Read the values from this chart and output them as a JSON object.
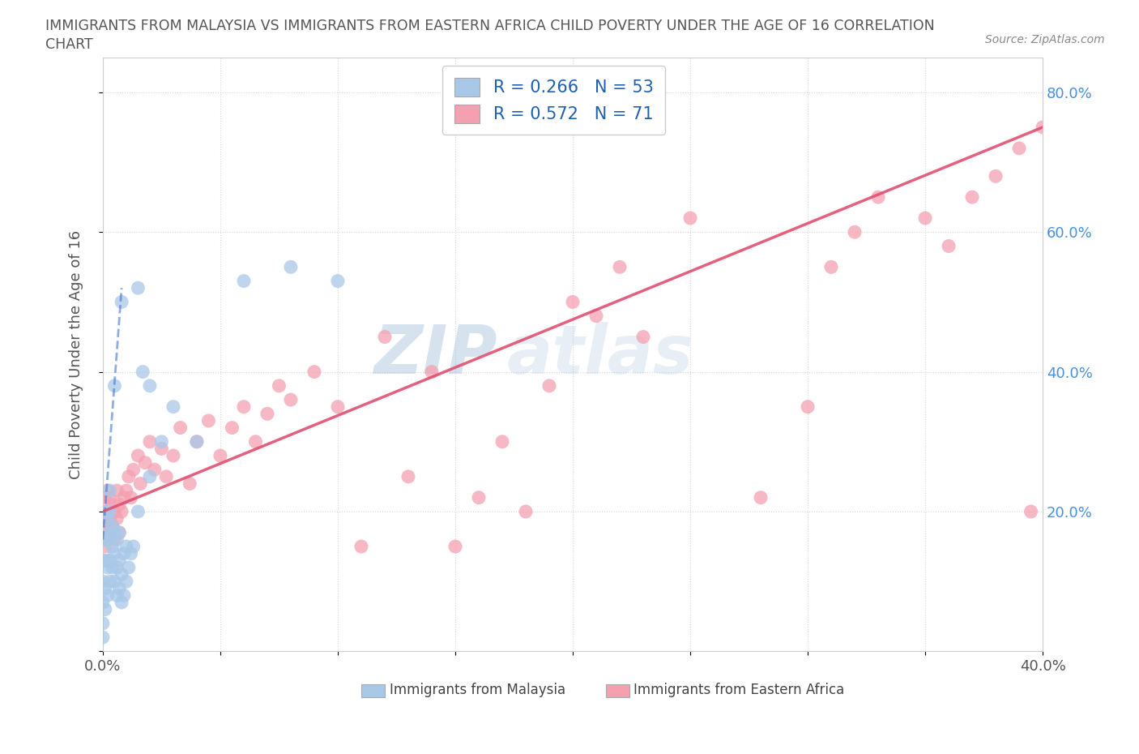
{
  "title_line1": "IMMIGRANTS FROM MALAYSIA VS IMMIGRANTS FROM EASTERN AFRICA CHILD POVERTY UNDER THE AGE OF 16 CORRELATION",
  "title_line2": "CHART",
  "source": "Source: ZipAtlas.com",
  "ylabel": "Child Poverty Under the Age of 16",
  "xlim": [
    0.0,
    0.4
  ],
  "ylim": [
    0.0,
    0.85
  ],
  "malaysia_color": "#a8c8e8",
  "eastern_africa_color": "#f4a0b0",
  "malaysia_line_color": "#4477cc",
  "eastern_africa_line_color": "#e05070",
  "malaysia_R": 0.266,
  "malaysia_N": 53,
  "eastern_africa_R": 0.572,
  "eastern_africa_N": 71,
  "legend_label_malaysia": "Immigrants from Malaysia",
  "legend_label_eastern_africa": "Immigrants from Eastern Africa",
  "watermark_zip": "ZIP",
  "watermark_atlas": "atlas",
  "grid_color": "#cccccc",
  "background_color": "#ffffff",
  "ytick_color": "#4a90d9",
  "malaysia_x": [
    0.0,
    0.0,
    0.0,
    0.0,
    0.0,
    0.001,
    0.001,
    0.001,
    0.001,
    0.001,
    0.002,
    0.002,
    0.002,
    0.002,
    0.003,
    0.003,
    0.003,
    0.003,
    0.003,
    0.004,
    0.004,
    0.004,
    0.005,
    0.005,
    0.005,
    0.006,
    0.006,
    0.006,
    0.007,
    0.007,
    0.007,
    0.008,
    0.008,
    0.009,
    0.009,
    0.01,
    0.01,
    0.011,
    0.012,
    0.013,
    0.015,
    0.017,
    0.02,
    0.025,
    0.03,
    0.04,
    0.06,
    0.08,
    0.1,
    0.02,
    0.015,
    0.008,
    0.005
  ],
  "malaysia_y": [
    0.02,
    0.04,
    0.07,
    0.1,
    0.13,
    0.06,
    0.09,
    0.13,
    0.16,
    0.2,
    0.08,
    0.12,
    0.16,
    0.19,
    0.1,
    0.13,
    0.17,
    0.2,
    0.23,
    0.12,
    0.15,
    0.18,
    0.1,
    0.14,
    0.17,
    0.08,
    0.12,
    0.16,
    0.09,
    0.13,
    0.17,
    0.07,
    0.11,
    0.08,
    0.14,
    0.1,
    0.15,
    0.12,
    0.14,
    0.15,
    0.52,
    0.4,
    0.38,
    0.3,
    0.35,
    0.3,
    0.53,
    0.55,
    0.53,
    0.25,
    0.2,
    0.5,
    0.38
  ],
  "eastern_africa_x": [
    0.0,
    0.0,
    0.001,
    0.001,
    0.001,
    0.002,
    0.002,
    0.002,
    0.003,
    0.003,
    0.004,
    0.004,
    0.005,
    0.005,
    0.006,
    0.006,
    0.007,
    0.007,
    0.008,
    0.009,
    0.01,
    0.011,
    0.012,
    0.013,
    0.015,
    0.016,
    0.018,
    0.02,
    0.022,
    0.025,
    0.027,
    0.03,
    0.033,
    0.037,
    0.04,
    0.045,
    0.05,
    0.055,
    0.06,
    0.065,
    0.07,
    0.075,
    0.08,
    0.09,
    0.1,
    0.11,
    0.12,
    0.13,
    0.14,
    0.15,
    0.16,
    0.17,
    0.18,
    0.19,
    0.2,
    0.21,
    0.22,
    0.23,
    0.25,
    0.28,
    0.3,
    0.31,
    0.32,
    0.33,
    0.35,
    0.36,
    0.37,
    0.38,
    0.39,
    0.395,
    0.4
  ],
  "eastern_africa_y": [
    0.2,
    0.16,
    0.18,
    0.22,
    0.15,
    0.2,
    0.23,
    0.17,
    0.19,
    0.22,
    0.18,
    0.21,
    0.16,
    0.2,
    0.19,
    0.23,
    0.21,
    0.17,
    0.2,
    0.22,
    0.23,
    0.25,
    0.22,
    0.26,
    0.28,
    0.24,
    0.27,
    0.3,
    0.26,
    0.29,
    0.25,
    0.28,
    0.32,
    0.24,
    0.3,
    0.33,
    0.28,
    0.32,
    0.35,
    0.3,
    0.34,
    0.38,
    0.36,
    0.4,
    0.35,
    0.15,
    0.45,
    0.25,
    0.4,
    0.15,
    0.22,
    0.3,
    0.2,
    0.38,
    0.5,
    0.48,
    0.55,
    0.45,
    0.62,
    0.22,
    0.35,
    0.55,
    0.6,
    0.65,
    0.62,
    0.58,
    0.65,
    0.68,
    0.72,
    0.2,
    0.75
  ],
  "malaysia_line_x": [
    0.0,
    0.008
  ],
  "malaysia_line_y": [
    0.16,
    0.52
  ],
  "eastern_africa_line_x": [
    0.0,
    0.4
  ],
  "eastern_africa_line_y": [
    0.2,
    0.75
  ]
}
